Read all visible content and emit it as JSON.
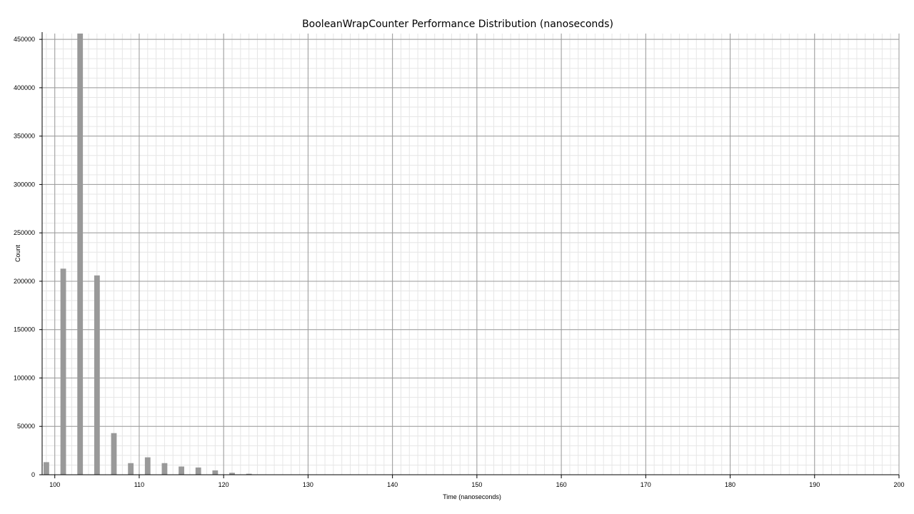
{
  "chart_data": {
    "type": "bar",
    "title": "BooleanWrapCounter  Performance Distribution (nanoseconds)",
    "xlabel": "Time (nanoseconds)",
    "ylabel": "Count",
    "xlim": [
      98.5,
      200
    ],
    "ylim": [
      0,
      456000
    ],
    "x_ticks": [
      100,
      110,
      120,
      130,
      140,
      150,
      160,
      170,
      180,
      190,
      200
    ],
    "y_ticks": [
      0,
      50000,
      100000,
      150000,
      200000,
      250000,
      300000,
      350000,
      400000,
      450000
    ],
    "bin_width": 1,
    "grid": true,
    "bar_color": "#999999",
    "bars": [
      {
        "x": 99,
        "count": 13000
      },
      {
        "x": 101,
        "count": 213000
      },
      {
        "x": 103,
        "count": 456000
      },
      {
        "x": 105,
        "count": 206000
      },
      {
        "x": 107,
        "count": 43000
      },
      {
        "x": 109,
        "count": 12000
      },
      {
        "x": 111,
        "count": 18000
      },
      {
        "x": 113,
        "count": 12000
      },
      {
        "x": 115,
        "count": 8500
      },
      {
        "x": 117,
        "count": 7500
      },
      {
        "x": 119,
        "count": 4500
      },
      {
        "x": 121,
        "count": 2000
      },
      {
        "x": 123,
        "count": 1000
      }
    ]
  }
}
